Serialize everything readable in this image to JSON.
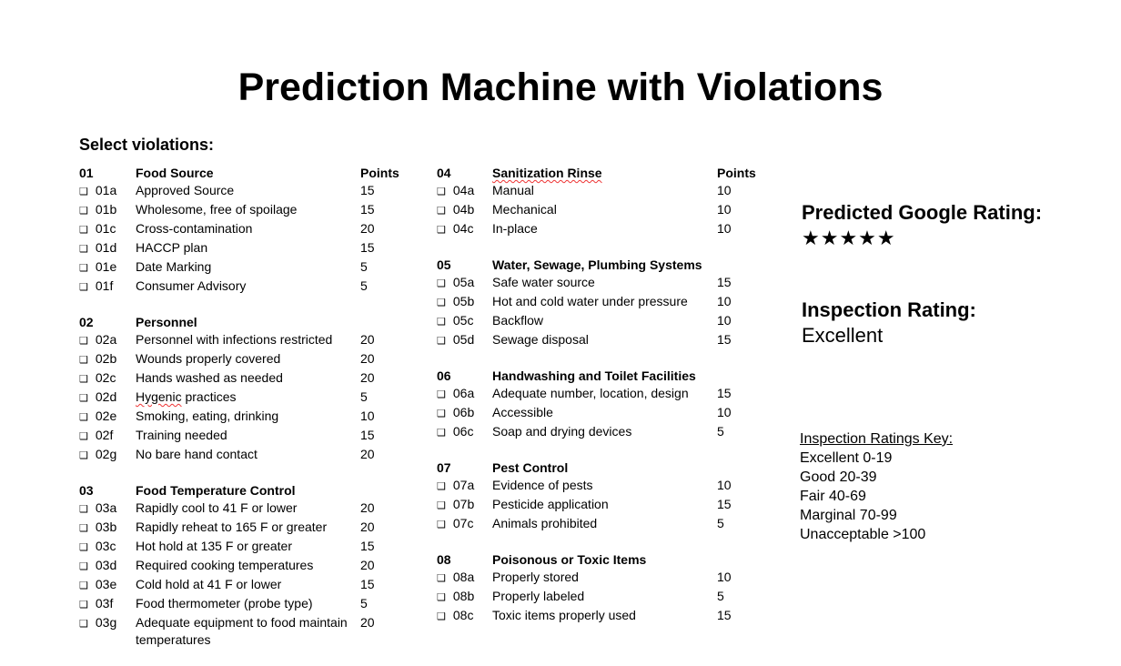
{
  "title": "Prediction Machine with Violations",
  "select_label": "Select violations:",
  "left_sections": [
    {
      "code": "01",
      "name": "Food Source",
      "points_header": "Points",
      "items": [
        {
          "code": "01a",
          "desc": "Approved Source",
          "points": "15"
        },
        {
          "code": "01b",
          "desc": "Wholesome, free of spoilage",
          "points": "15"
        },
        {
          "code": "01c",
          "desc": "Cross-contamination",
          "points": "20"
        },
        {
          "code": "01d",
          "desc": "HACCP plan",
          "points": "15"
        },
        {
          "code": "01e",
          "desc": "Date Marking",
          "points": "5"
        },
        {
          "code": "01f",
          "desc": "Consumer Advisory",
          "points": "5"
        }
      ]
    },
    {
      "code": "02",
      "name": "Personnel",
      "points_header": "",
      "items": [
        {
          "code": "02a",
          "desc": "Personnel with infections restricted",
          "points": "20"
        },
        {
          "code": "02b",
          "desc": "Wounds properly covered",
          "points": "20"
        },
        {
          "code": "02c",
          "desc": "Hands washed as needed",
          "points": "20"
        },
        {
          "code": "02d",
          "desc": "Hygenic practices",
          "points": "5"
        },
        {
          "code": "02e",
          "desc": "Smoking, eating, drinking",
          "points": "10"
        },
        {
          "code": "02f",
          "desc": "Training needed",
          "points": "15"
        },
        {
          "code": "02g",
          "desc": "No bare hand contact",
          "points": "20"
        }
      ]
    },
    {
      "code": "03",
      "name": "Food Temperature Control",
      "points_header": "",
      "items": [
        {
          "code": "03a",
          "desc": "Rapidly cool to 41 F or lower",
          "points": "20"
        },
        {
          "code": "03b",
          "desc": "Rapidly reheat to 165 F or greater",
          "points": "20"
        },
        {
          "code": "03c",
          "desc": "Hot hold at 135 F or greater",
          "points": "15"
        },
        {
          "code": "03d",
          "desc": "Required cooking temperatures",
          "points": "20"
        },
        {
          "code": "03e",
          "desc": "Cold hold at 41 F or lower",
          "points": "15"
        },
        {
          "code": "03f",
          "desc": "Food thermometer (probe type)",
          "points": "5"
        },
        {
          "code": "03g",
          "desc": "Adequate equipment to food maintain temperatures",
          "points": "20"
        }
      ]
    }
  ],
  "mid_sections": [
    {
      "code": "04",
      "name": "Sanitization Rinse",
      "points_header": "Points",
      "items": [
        {
          "code": "04a",
          "desc": "Manual",
          "points": "10"
        },
        {
          "code": "04b",
          "desc": "Mechanical",
          "points": "10"
        },
        {
          "code": "04c",
          "desc": "In-place",
          "points": "10"
        }
      ]
    },
    {
      "code": "05",
      "name": "Water, Sewage, Plumbing Systems",
      "points_header": "",
      "items": [
        {
          "code": "05a",
          "desc": "Safe water source",
          "points": "15"
        },
        {
          "code": "05b",
          "desc": "Hot and cold water under pressure",
          "points": "10"
        },
        {
          "code": "05c",
          "desc": "Backflow",
          "points": "10"
        },
        {
          "code": "05d",
          "desc": "Sewage disposal",
          "points": "15"
        }
      ]
    },
    {
      "code": "06",
      "name": "Handwashing and Toilet Facilities",
      "points_header": "",
      "items": [
        {
          "code": "06a",
          "desc": "Adequate number, location, design",
          "points": "15"
        },
        {
          "code": "06b",
          "desc": "Accessible",
          "points": "10"
        },
        {
          "code": "06c",
          "desc": "Soap and drying devices",
          "points": "5"
        }
      ]
    },
    {
      "code": "07",
      "name": "Pest Control",
      "points_header": "",
      "items": [
        {
          "code": "07a",
          "desc": "Evidence of pests",
          "points": "10"
        },
        {
          "code": "07b",
          "desc": "Pesticide application",
          "points": "15"
        },
        {
          "code": "07c",
          "desc": "Animals prohibited",
          "points": "5"
        }
      ]
    },
    {
      "code": "08",
      "name": "Poisonous or Toxic Items",
      "points_header": "",
      "items": [
        {
          "code": "08a",
          "desc": "Properly stored",
          "points": "10"
        },
        {
          "code": "08b",
          "desc": "Properly labeled",
          "points": "5"
        },
        {
          "code": "08c",
          "desc": "Toxic items properly used",
          "points": "15"
        }
      ]
    }
  ],
  "checkbox_glyph": "❑",
  "prediction": {
    "label": "Predicted Google Rating:",
    "stars": "★★★★★"
  },
  "inspection": {
    "label": "Inspection Rating:",
    "value": "Excellent"
  },
  "ratings_key": {
    "title": "Inspection Ratings Key:",
    "entries": [
      "Excellent 0-19",
      "Good 20-39",
      "Fair 40-69",
      "Marginal 70-99",
      "Unacceptable >100"
    ]
  }
}
